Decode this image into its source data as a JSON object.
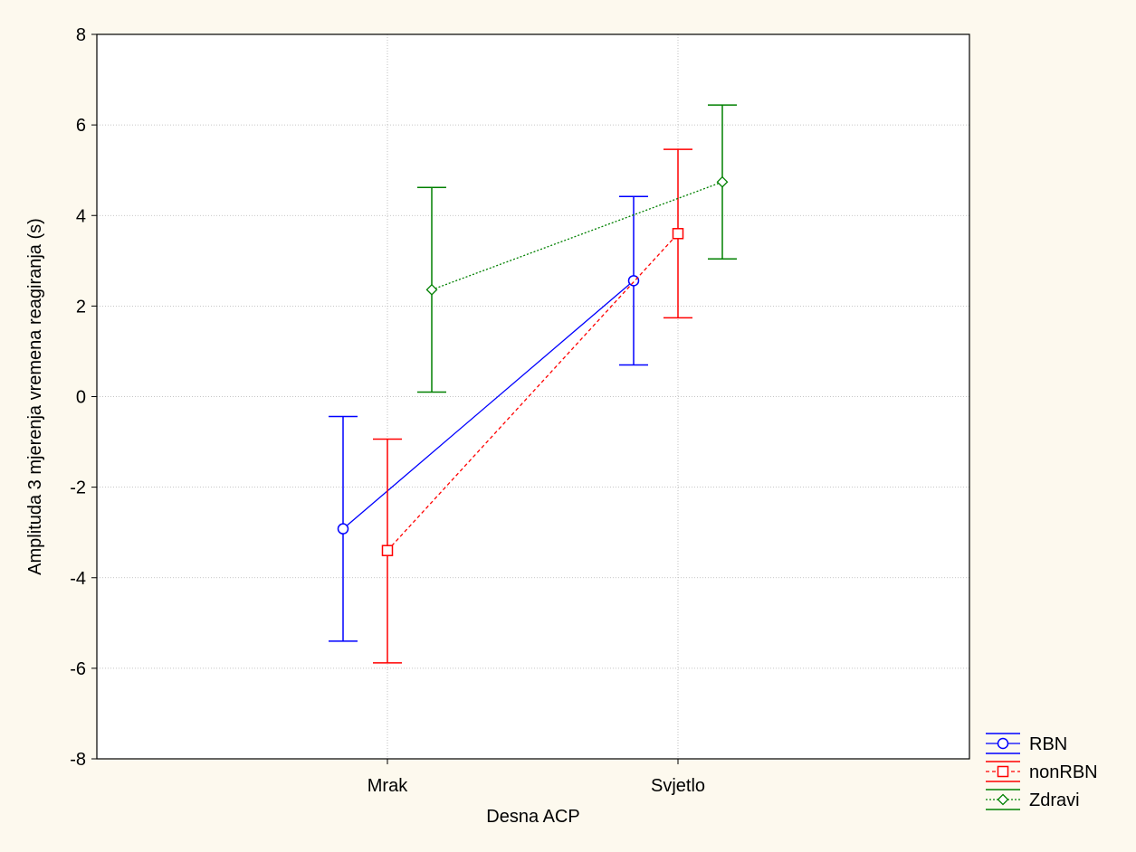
{
  "chart_data": {
    "type": "line",
    "xlabel": "Desna ACP",
    "ylabel": "Amplituda 3 mjerenja vremena reagiranja (s)",
    "categories": [
      "Mrak",
      "Svjetlo"
    ],
    "ylim": [
      -8,
      8
    ],
    "yticks": [
      -8,
      -6,
      -4,
      -2,
      0,
      2,
      4,
      6,
      8
    ],
    "grid": true,
    "legend_position": "bottom-right",
    "error_bars": true,
    "series": [
      {
        "name": "RBN",
        "color": "#0000ff",
        "line_style": "solid",
        "marker": "circle",
        "values": [
          -2.92,
          2.56
        ],
        "error_low": [
          -5.4,
          0.7
        ],
        "error_high": [
          -0.44,
          4.42
        ]
      },
      {
        "name": "nonRBN",
        "color": "#ff0000",
        "line_style": "dashed",
        "marker": "square",
        "values": [
          -3.4,
          3.6
        ],
        "error_low": [
          -5.88,
          1.74
        ],
        "error_high": [
          -0.94,
          5.46
        ]
      },
      {
        "name": "Zdravi",
        "color": "#008000",
        "line_style": "dotted",
        "marker": "diamond",
        "values": [
          2.36,
          4.74
        ],
        "error_low": [
          0.1,
          3.04
        ],
        "error_high": [
          4.62,
          6.44
        ]
      }
    ]
  }
}
